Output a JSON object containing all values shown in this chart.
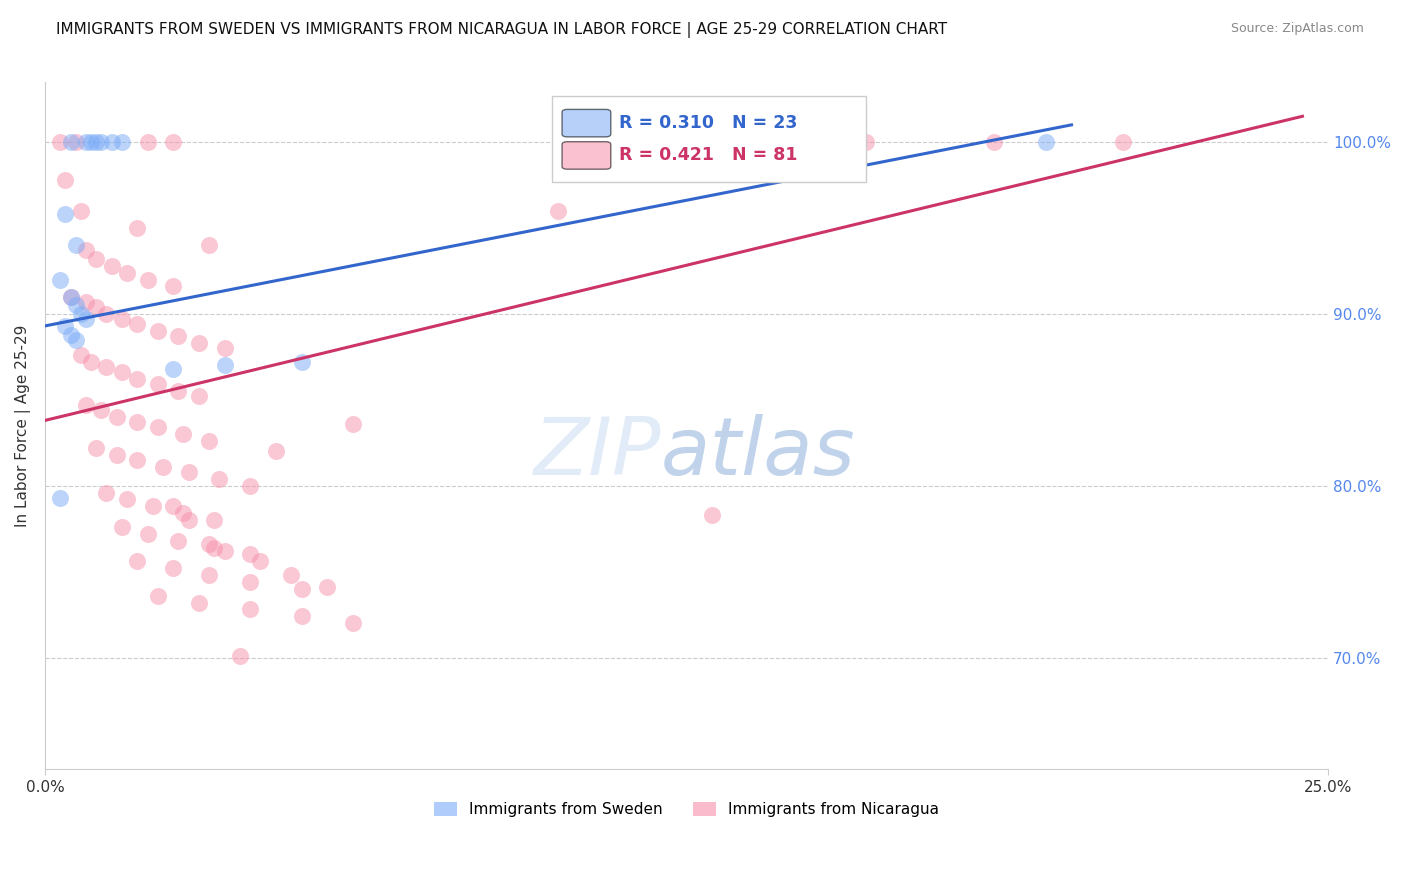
{
  "title": "IMMIGRANTS FROM SWEDEN VS IMMIGRANTS FROM NICARAGUA IN LABOR FORCE | AGE 25-29 CORRELATION CHART",
  "source": "Source: ZipAtlas.com",
  "ylabel": "In Labor Force | Age 25-29",
  "xlim": [
    0.0,
    0.25
  ],
  "ylim": [
    0.635,
    1.035
  ],
  "sweden_color": "#7aabf7",
  "nicaragua_color": "#f790aa",
  "sweden_R": 0.31,
  "sweden_N": 23,
  "nicaragua_R": 0.421,
  "nicaragua_N": 81,
  "legend_label_sweden": "Immigrants from Sweden",
  "legend_label_nicaragua": "Immigrants from Nicaragua",
  "sweden_line_color": "#3366cc",
  "nicaragua_line_color": "#cc3366",
  "background_color": "#ffffff",
  "grid_color": "#cccccc",
  "right_tick_color": "#5588ee",
  "sweden_points": [
    [
      0.005,
      1.0
    ],
    [
      0.008,
      1.0
    ],
    [
      0.009,
      1.0
    ],
    [
      0.01,
      1.0
    ],
    [
      0.011,
      1.0
    ],
    [
      0.013,
      1.0
    ],
    [
      0.015,
      1.0
    ],
    [
      0.004,
      0.958
    ],
    [
      0.006,
      0.94
    ],
    [
      0.003,
      0.92
    ],
    [
      0.005,
      0.91
    ],
    [
      0.006,
      0.905
    ],
    [
      0.007,
      0.9
    ],
    [
      0.008,
      0.897
    ],
    [
      0.004,
      0.893
    ],
    [
      0.005,
      0.888
    ],
    [
      0.006,
      0.885
    ],
    [
      0.05,
      0.872
    ],
    [
      0.035,
      0.87
    ],
    [
      0.025,
      0.868
    ],
    [
      0.003,
      0.793
    ],
    [
      0.15,
      1.0
    ],
    [
      0.195,
      1.0
    ]
  ],
  "nicaragua_points": [
    [
      0.003,
      1.0
    ],
    [
      0.006,
      1.0
    ],
    [
      0.02,
      1.0
    ],
    [
      0.025,
      1.0
    ],
    [
      0.16,
      1.0
    ],
    [
      0.185,
      1.0
    ],
    [
      0.21,
      1.0
    ],
    [
      0.004,
      0.978
    ],
    [
      0.007,
      0.96
    ],
    [
      0.018,
      0.95
    ],
    [
      0.032,
      0.94
    ],
    [
      0.008,
      0.937
    ],
    [
      0.01,
      0.932
    ],
    [
      0.013,
      0.928
    ],
    [
      0.016,
      0.924
    ],
    [
      0.02,
      0.92
    ],
    [
      0.025,
      0.916
    ],
    [
      0.005,
      0.91
    ],
    [
      0.008,
      0.907
    ],
    [
      0.01,
      0.904
    ],
    [
      0.012,
      0.9
    ],
    [
      0.015,
      0.897
    ],
    [
      0.018,
      0.894
    ],
    [
      0.022,
      0.89
    ],
    [
      0.026,
      0.887
    ],
    [
      0.03,
      0.883
    ],
    [
      0.035,
      0.88
    ],
    [
      0.007,
      0.876
    ],
    [
      0.009,
      0.872
    ],
    [
      0.012,
      0.869
    ],
    [
      0.015,
      0.866
    ],
    [
      0.018,
      0.862
    ],
    [
      0.022,
      0.859
    ],
    [
      0.026,
      0.855
    ],
    [
      0.03,
      0.852
    ],
    [
      0.008,
      0.847
    ],
    [
      0.011,
      0.844
    ],
    [
      0.014,
      0.84
    ],
    [
      0.018,
      0.837
    ],
    [
      0.022,
      0.834
    ],
    [
      0.027,
      0.83
    ],
    [
      0.032,
      0.826
    ],
    [
      0.01,
      0.822
    ],
    [
      0.014,
      0.818
    ],
    [
      0.018,
      0.815
    ],
    [
      0.023,
      0.811
    ],
    [
      0.028,
      0.808
    ],
    [
      0.034,
      0.804
    ],
    [
      0.04,
      0.8
    ],
    [
      0.012,
      0.796
    ],
    [
      0.016,
      0.792
    ],
    [
      0.021,
      0.788
    ],
    [
      0.027,
      0.784
    ],
    [
      0.033,
      0.78
    ],
    [
      0.015,
      0.776
    ],
    [
      0.02,
      0.772
    ],
    [
      0.026,
      0.768
    ],
    [
      0.033,
      0.764
    ],
    [
      0.04,
      0.76
    ],
    [
      0.018,
      0.756
    ],
    [
      0.025,
      0.752
    ],
    [
      0.032,
      0.748
    ],
    [
      0.04,
      0.744
    ],
    [
      0.05,
      0.74
    ],
    [
      0.022,
      0.736
    ],
    [
      0.03,
      0.732
    ],
    [
      0.04,
      0.728
    ],
    [
      0.05,
      0.724
    ],
    [
      0.06,
      0.72
    ],
    [
      0.13,
      0.783
    ],
    [
      0.045,
      0.82
    ],
    [
      0.06,
      0.836
    ],
    [
      0.1,
      0.96
    ],
    [
      0.038,
      0.701
    ],
    [
      0.025,
      0.788
    ],
    [
      0.028,
      0.78
    ],
    [
      0.032,
      0.766
    ],
    [
      0.035,
      0.762
    ],
    [
      0.042,
      0.756
    ],
    [
      0.048,
      0.748
    ],
    [
      0.055,
      0.741
    ]
  ]
}
